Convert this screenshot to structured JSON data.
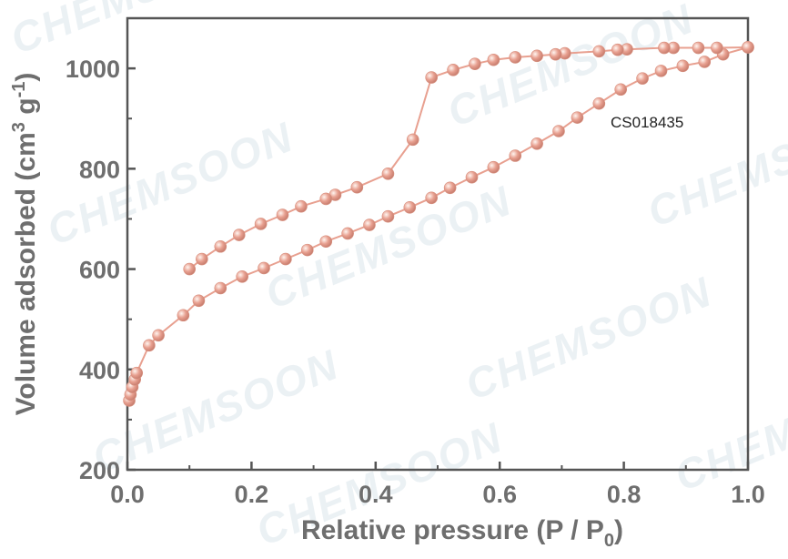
{
  "chart_data": {
    "type": "line",
    "title": "",
    "xlabel": "Relative pressure (P / P",
    "xlabel_sub": "0",
    "xlabel_end": ")",
    "ylabel": "Volume adsorbed (cm",
    "ylabel_sup1": "3",
    "ylabel_mid": " g",
    "ylabel_sup2": "-1",
    "ylabel_end": ")",
    "xlim": [
      0.0,
      1.0
    ],
    "ylim": [
      200,
      1100
    ],
    "xticks": [
      0.0,
      0.2,
      0.4,
      0.6,
      0.8,
      1.0
    ],
    "xtick_labels": [
      "0.0",
      "0.2",
      "0.4",
      "0.6",
      "0.8",
      "1.0"
    ],
    "yticks": [
      200,
      400,
      600,
      800,
      1000
    ],
    "ytick_labels": [
      "200",
      "400",
      "600",
      "800",
      "1000"
    ],
    "grid": false,
    "legend": "none",
    "annotation": "CS018435",
    "watermark": "CHEMSOON",
    "color": "#e8a090",
    "series": [
      {
        "x": [
          0.003,
          0.005,
          0.008,
          0.012,
          0.015,
          0.035,
          0.05,
          0.09,
          0.115,
          0.15,
          0.185,
          0.22,
          0.255,
          0.29,
          0.32,
          0.355,
          0.39,
          0.42,
          0.455,
          0.49,
          0.52,
          0.555,
          0.59,
          0.625,
          0.66,
          0.695,
          0.725,
          0.76,
          0.795,
          0.83,
          0.86,
          0.895,
          0.93,
          0.96,
          1.0
        ],
        "y": [
          338,
          350,
          365,
          380,
          393,
          448,
          468,
          508,
          537,
          562,
          585,
          602,
          620,
          638,
          655,
          671,
          688,
          705,
          723,
          742,
          762,
          783,
          803,
          826,
          850,
          875,
          902,
          930,
          958,
          980,
          995,
          1005,
          1013,
          1028,
          1042
        ]
      },
      {
        "x": [
          1.0,
          0.95,
          0.92,
          0.88,
          0.865,
          0.805,
          0.79,
          0.76,
          0.705,
          0.69,
          0.66,
          0.625,
          0.59,
          0.56,
          0.525,
          0.49,
          0.46,
          0.42,
          0.37,
          0.335,
          0.32,
          0.28,
          0.25,
          0.215,
          0.18,
          0.15,
          0.12,
          0.1
        ],
        "y": [
          1042,
          1041,
          1041,
          1041,
          1041,
          1038,
          1037,
          1034,
          1030,
          1028,
          1025,
          1022,
          1017,
          1009,
          997,
          982,
          858,
          790,
          763,
          748,
          740,
          725,
          708,
          690,
          668,
          645,
          620,
          600
        ]
      }
    ]
  }
}
